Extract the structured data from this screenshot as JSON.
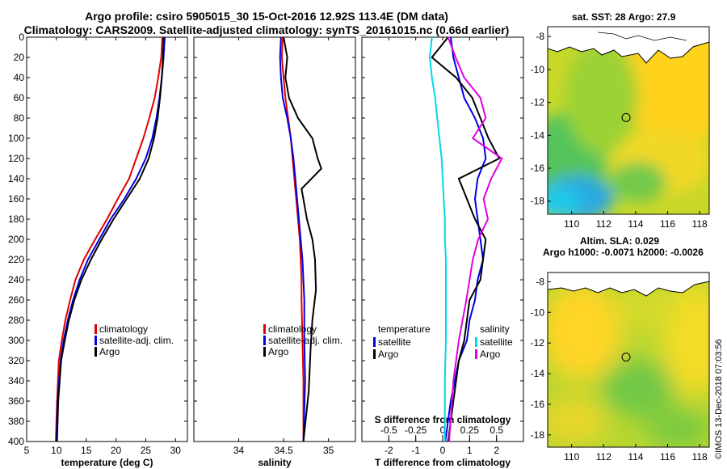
{
  "header": {
    "title_line1": "Argo profile: csiro 5905015_30 15-Oct-2016 12.92S 113.4E (DM data)",
    "title_line2": "Climatology: CARS2009. Satellite-adjusted climatology: synTS_20161015.nc (0.66d earlier)"
  },
  "maps": {
    "sst_title": "sat. SST: 28 Argo: 27.9",
    "sla_title_line1": "Altim. SLA: 0.029",
    "sla_title_line2": "Argo h1000: -0.0071 h2000: -0.0026",
    "xticks": [
      110,
      112,
      114,
      116,
      118
    ],
    "yticks": [
      -8,
      -10,
      -12,
      -14,
      -16,
      -18
    ],
    "lon_range": [
      108.5,
      118.6
    ],
    "lat_range": [
      -18.8,
      -7.4
    ],
    "argo_position": {
      "lon": 113.4,
      "lat": -12.92
    }
  },
  "footer": {
    "credit": "©IMOS 13-Dec-2018 07:03:56"
  },
  "colors": {
    "climatology": "#e00000",
    "satellite": "#0000e0",
    "argo": "#000000",
    "s_satellite": "#00d8e8",
    "s_climatology": "#e000e0"
  },
  "chart_data": [
    {
      "type": "line",
      "name": "temperature",
      "xlabel": "temperature (deg C)",
      "ylabel": "",
      "xlim": [
        5,
        32
      ],
      "ylim": [
        400,
        0
      ],
      "xticks": [
        5,
        10,
        15,
        20,
        25,
        30
      ],
      "yticks": [
        0,
        20,
        40,
        60,
        80,
        100,
        120,
        140,
        160,
        180,
        200,
        220,
        240,
        260,
        280,
        300,
        320,
        340,
        360,
        380,
        400
      ],
      "legend": [
        "climatology",
        "satellite-adj. clim.",
        "Argo"
      ],
      "series": [
        {
          "name": "climatology",
          "color": "#e00000",
          "x": [
            27.8,
            27.6,
            27.1,
            26.5,
            25.6,
            24.6,
            23.4,
            22.2,
            20.3,
            18.5,
            16.5,
            14.6,
            13.2,
            12.3,
            11.5,
            10.9,
            10.4,
            10.1,
            9.9
          ],
          "y": [
            0,
            20,
            40,
            60,
            80,
            100,
            120,
            140,
            160,
            180,
            200,
            220,
            240,
            260,
            280,
            300,
            320,
            360,
            400
          ]
        },
        {
          "name": "satellite-adj. clim.",
          "color": "#0000e0",
          "x": [
            28.2,
            28.0,
            27.7,
            27.3,
            26.8,
            26.1,
            25.0,
            23.4,
            21.4,
            19.1,
            17.2,
            15.3,
            13.9,
            12.8,
            11.9,
            11.2,
            10.7,
            10.2,
            10.0
          ],
          "y": [
            0,
            20,
            40,
            60,
            80,
            100,
            120,
            140,
            160,
            180,
            200,
            220,
            240,
            260,
            280,
            300,
            320,
            360,
            400
          ]
        },
        {
          "name": "Argo",
          "color": "#000000",
          "x": [
            28.0,
            27.9,
            27.7,
            27.4,
            27.0,
            26.4,
            25.5,
            24.0,
            21.8,
            19.6,
            17.6,
            15.8,
            14.2,
            13.0,
            12.1,
            11.4,
            10.8,
            10.3,
            10.1
          ],
          "y": [
            0,
            20,
            40,
            60,
            80,
            100,
            120,
            140,
            160,
            180,
            200,
            220,
            240,
            260,
            280,
            300,
            320,
            360,
            400
          ]
        }
      ]
    },
    {
      "type": "line",
      "name": "salinity",
      "xlabel": "salinity",
      "xlim": [
        33.5,
        35.3
      ],
      "ylim": [
        400,
        0
      ],
      "xticks": [
        34,
        34.5,
        35
      ],
      "legend": [
        "climatology",
        "satellite-adj. clim.",
        "Argo"
      ],
      "series": [
        {
          "name": "climatology",
          "color": "#e00000",
          "x": [
            34.49,
            34.48,
            34.5,
            34.52,
            34.55,
            34.58,
            34.6,
            34.62,
            34.64,
            34.66,
            34.68,
            34.69,
            34.7,
            34.7,
            34.71,
            34.72,
            34.72
          ],
          "y": [
            0,
            20,
            40,
            60,
            80,
            100,
            120,
            140,
            160,
            180,
            200,
            220,
            240,
            260,
            300,
            340,
            400
          ]
        },
        {
          "name": "satellite-adj. clim.",
          "color": "#0000e0",
          "x": [
            34.47,
            34.46,
            34.47,
            34.49,
            34.54,
            34.58,
            34.61,
            34.63,
            34.65,
            34.67,
            34.69,
            34.71,
            34.72,
            34.73,
            34.73,
            34.74,
            34.72
          ],
          "y": [
            0,
            20,
            40,
            60,
            80,
            100,
            120,
            140,
            160,
            180,
            200,
            220,
            240,
            260,
            300,
            340,
            400
          ]
        },
        {
          "name": "Argo",
          "color": "#000000",
          "x": [
            34.5,
            34.54,
            34.52,
            34.56,
            34.66,
            34.82,
            34.88,
            34.92,
            34.7,
            34.76,
            34.82,
            34.85,
            34.86,
            34.82,
            34.8,
            34.78,
            34.72
          ],
          "y": [
            0,
            20,
            40,
            60,
            80,
            100,
            120,
            130,
            150,
            180,
            200,
            220,
            250,
            280,
            310,
            350,
            400
          ]
        }
      ]
    },
    {
      "type": "line",
      "name": "differences",
      "xlabel": "T difference from climatology",
      "xlabel_top": "S difference from climatology",
      "xlim": [
        -3,
        3
      ],
      "ylim": [
        400,
        0
      ],
      "xticks": [
        -2,
        -1,
        0,
        1,
        2
      ],
      "xticks_top": [
        -0.5,
        -0.25,
        0,
        0.25,
        0.5
      ],
      "legend_left_title": "temperature",
      "legend_right_title": "salinity",
      "legend": [
        "satellite",
        "Argo",
        "satellite",
        "Argo"
      ],
      "series": [
        {
          "name": "T satellite",
          "color": "#0000e0",
          "x": [
            0.3,
            0.4,
            0.6,
            0.8,
            1.2,
            1.5,
            1.6,
            1.3,
            1.2,
            1.3,
            1.4,
            1.5,
            1.3,
            1.2,
            1.0,
            0.9,
            0.6,
            0.3,
            0.1
          ],
          "y": [
            0,
            20,
            40,
            60,
            80,
            100,
            120,
            140,
            160,
            180,
            200,
            220,
            240,
            260,
            280,
            300,
            320,
            360,
            400
          ]
        },
        {
          "name": "T Argo",
          "color": "#000000",
          "x": [
            0.2,
            -0.4,
            0.5,
            1.1,
            1.4,
            1.7,
            2.1,
            0.6,
            0.9,
            1.2,
            1.6,
            1.5,
            1.4,
            1.0,
            0.9,
            0.8,
            0.6,
            0.4,
            0.2
          ],
          "y": [
            0,
            20,
            40,
            60,
            80,
            100,
            120,
            140,
            160,
            180,
            200,
            220,
            240,
            260,
            280,
            300,
            320,
            360,
            400
          ]
        },
        {
          "name": "S satellite",
          "color": "#00d8e8",
          "x": [
            -0.1,
            -0.12,
            -0.1,
            -0.07,
            -0.05,
            -0.03,
            -0.01,
            0.0,
            0.01,
            0.02,
            0.02,
            0.03,
            0.03,
            0.03,
            0.02,
            0.02
          ],
          "y": [
            0,
            20,
            40,
            60,
            80,
            100,
            120,
            140,
            160,
            180,
            200,
            220,
            260,
            300,
            340,
            400
          ]
        },
        {
          "name": "S Argo",
          "color": "#e000e0",
          "x": [
            0.05,
            0.12,
            0.2,
            0.35,
            0.4,
            0.28,
            0.55,
            0.45,
            0.38,
            0.42,
            0.33,
            0.28,
            0.22,
            0.15,
            0.1,
            0.06
          ],
          "y": [
            0,
            20,
            40,
            60,
            80,
            100,
            120,
            140,
            160,
            180,
            200,
            220,
            260,
            300,
            340,
            400
          ]
        }
      ]
    }
  ]
}
